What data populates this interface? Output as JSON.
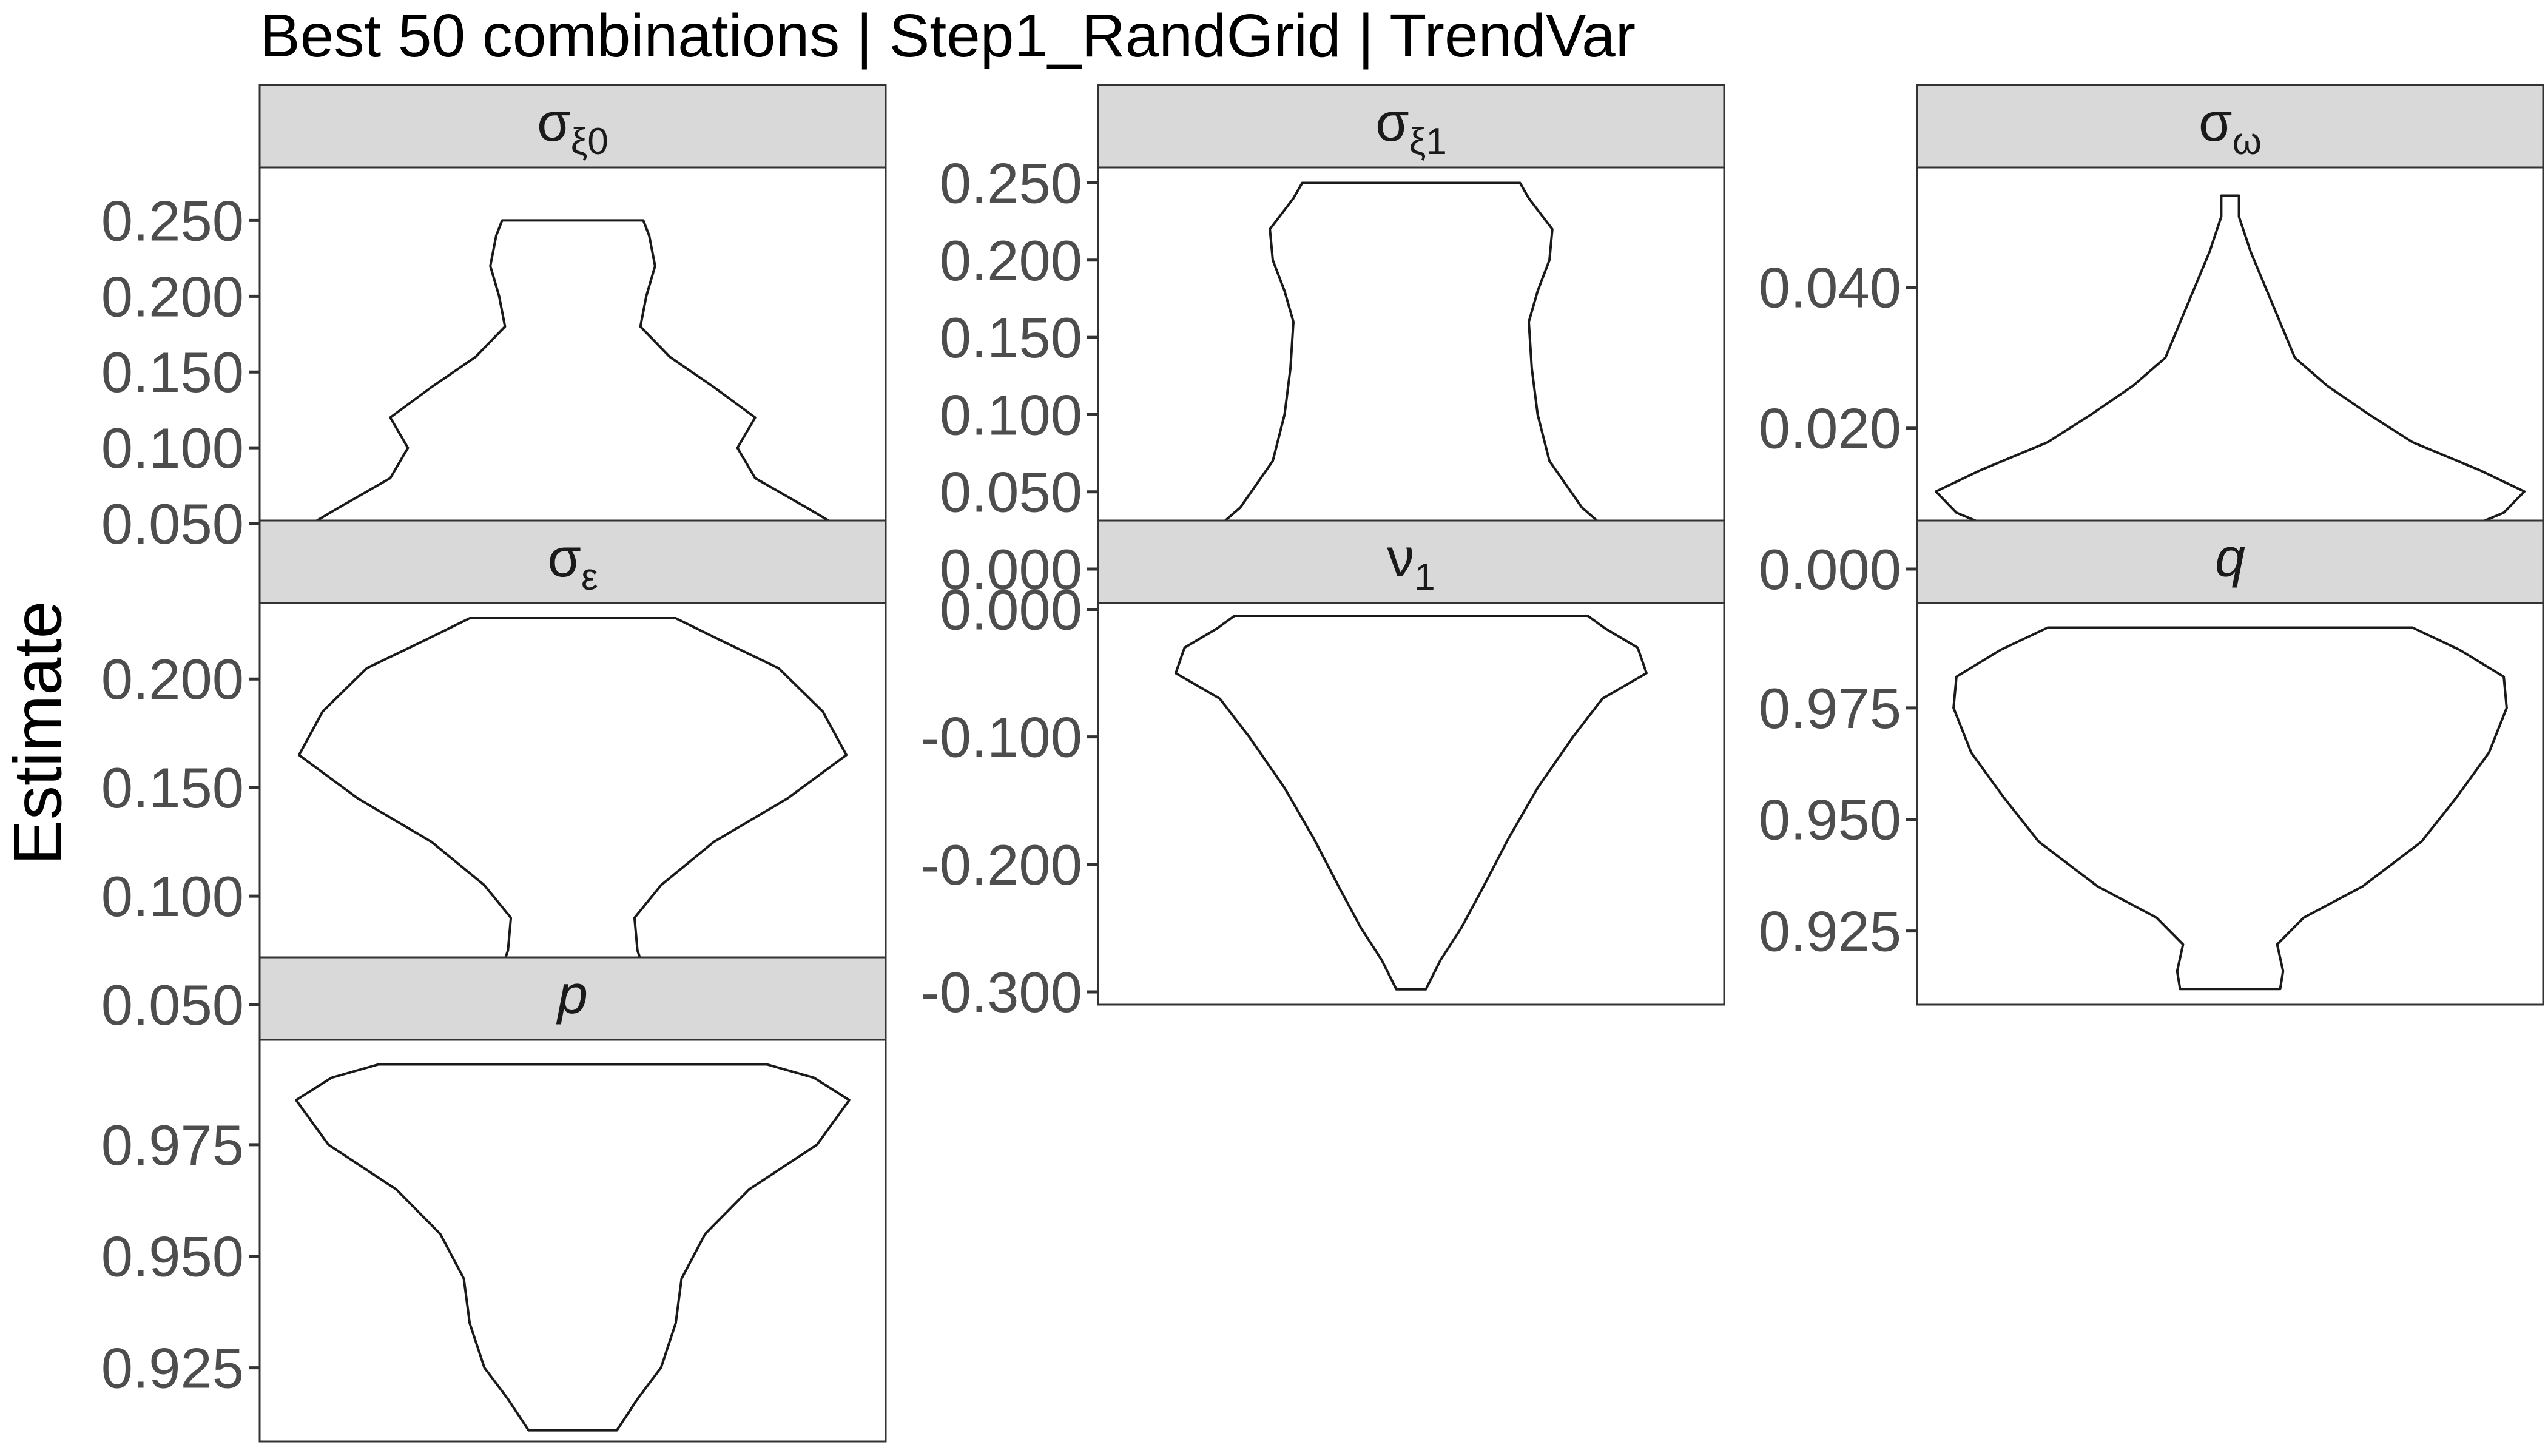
{
  "title": "Best 50 combinations | Step1_RandGrid | TrendVar",
  "ylabel": "Estimate",
  "chart_data": {
    "type": "violin",
    "title": "Best 50 combinations | Step1_RandGrid | TrendVar",
    "ylabel": "Estimate",
    "xlabel": "",
    "grid": false,
    "scales": "free_y",
    "facets": [
      {
        "label": "σ_ξ0",
        "base": "σ",
        "sub": "ξ0",
        "italic": false,
        "ylim": [
          0.02,
          0.285
        ],
        "ticks": [
          0.05,
          0.1,
          0.15,
          0.2,
          0.25
        ],
        "tick_labels": [
          "0.050",
          "0.100",
          "0.150",
          "0.200",
          "0.250"
        ],
        "range": [
          0.035,
          0.25
        ],
        "density": [
          [
            0.035,
            1.0
          ],
          [
            0.045,
            0.93
          ],
          [
            0.06,
            0.8
          ],
          [
            0.08,
            0.62
          ],
          [
            0.1,
            0.56
          ],
          [
            0.12,
            0.62
          ],
          [
            0.14,
            0.48
          ],
          [
            0.16,
            0.33
          ],
          [
            0.18,
            0.23
          ],
          [
            0.2,
            0.25
          ],
          [
            0.22,
            0.28
          ],
          [
            0.24,
            0.26
          ],
          [
            0.25,
            0.24
          ]
        ]
      },
      {
        "label": "σ_ξ1",
        "base": "σ",
        "sub": "ξ1",
        "italic": false,
        "ylim": [
          0.0,
          0.26
        ],
        "ticks": [
          0.0,
          0.05,
          0.1,
          0.15,
          0.2,
          0.25
        ],
        "tick_labels": [
          "0.000",
          "0.050",
          "0.100",
          "0.150",
          "0.200",
          "0.250"
        ],
        "range": [
          0.01,
          0.25
        ],
        "density": [
          [
            0.01,
            0.74
          ],
          [
            0.02,
            0.7
          ],
          [
            0.04,
            0.58
          ],
          [
            0.07,
            0.47
          ],
          [
            0.1,
            0.43
          ],
          [
            0.13,
            0.41
          ],
          [
            0.16,
            0.4
          ],
          [
            0.18,
            0.43
          ],
          [
            0.2,
            0.47
          ],
          [
            0.22,
            0.48
          ],
          [
            0.24,
            0.4
          ],
          [
            0.25,
            0.37
          ]
        ]
      },
      {
        "label": "σ_ω",
        "base": "σ",
        "sub": "ω",
        "italic": false,
        "ylim": [
          0.0,
          0.057
        ],
        "ticks": [
          0.0,
          0.02,
          0.04
        ],
        "tick_labels": [
          "0.000",
          "0.020",
          "0.040"
        ],
        "range": [
          0.001,
          0.053
        ],
        "density": [
          [
            0.001,
            0.38
          ],
          [
            0.004,
            0.7
          ],
          [
            0.008,
            0.93
          ],
          [
            0.011,
            1.0
          ],
          [
            0.014,
            0.85
          ],
          [
            0.018,
            0.62
          ],
          [
            0.022,
            0.47
          ],
          [
            0.026,
            0.33
          ],
          [
            0.03,
            0.22
          ],
          [
            0.035,
            0.17
          ],
          [
            0.04,
            0.12
          ],
          [
            0.045,
            0.07
          ],
          [
            0.05,
            0.03
          ],
          [
            0.053,
            0.03
          ]
        ]
      },
      {
        "label": "σ_ε",
        "base": "σ",
        "sub": "ε",
        "italic": false,
        "ylim": [
          0.05,
          0.235
        ],
        "ticks": [
          0.05,
          0.1,
          0.15,
          0.2
        ],
        "tick_labels": [
          "0.050",
          "0.100",
          "0.150",
          "0.200"
        ],
        "range": [
          0.057,
          0.228
        ],
        "density": [
          [
            0.057,
            0.23
          ],
          [
            0.063,
            0.25
          ],
          [
            0.075,
            0.22
          ],
          [
            0.09,
            0.21
          ],
          [
            0.105,
            0.3
          ],
          [
            0.125,
            0.48
          ],
          [
            0.145,
            0.73
          ],
          [
            0.165,
            0.93
          ],
          [
            0.185,
            0.85
          ],
          [
            0.205,
            0.7
          ],
          [
            0.218,
            0.5
          ],
          [
            0.228,
            0.35
          ]
        ]
      },
      {
        "label": "ν_1",
        "base": "ν",
        "sub": "1",
        "italic": false,
        "ylim": [
          -0.31,
          0.005
        ],
        "ticks": [
          -0.3,
          -0.2,
          -0.1,
          0.0
        ],
        "tick_labels": [
          "-0.300",
          "-0.200",
          "-0.100",
          "0.000"
        ],
        "range": [
          -0.298,
          -0.005
        ],
        "density": [
          [
            -0.298,
            0.05
          ],
          [
            -0.275,
            0.1
          ],
          [
            -0.25,
            0.17
          ],
          [
            -0.22,
            0.24
          ],
          [
            -0.18,
            0.33
          ],
          [
            -0.14,
            0.43
          ],
          [
            -0.1,
            0.55
          ],
          [
            -0.07,
            0.65
          ],
          [
            -0.05,
            0.8
          ],
          [
            -0.03,
            0.77
          ],
          [
            -0.015,
            0.66
          ],
          [
            -0.005,
            0.6
          ]
        ]
      },
      {
        "label": "q",
        "base": "q",
        "sub": "",
        "italic": true,
        "ylim": [
          0.9085,
          0.9985
        ],
        "ticks": [
          0.925,
          0.95,
          0.975
        ],
        "tick_labels": [
          "0.925",
          "0.950",
          "0.975"
        ],
        "range": [
          0.912,
          0.993
        ],
        "density": [
          [
            0.912,
            0.17
          ],
          [
            0.916,
            0.18
          ],
          [
            0.922,
            0.16
          ],
          [
            0.928,
            0.25
          ],
          [
            0.935,
            0.45
          ],
          [
            0.945,
            0.65
          ],
          [
            0.955,
            0.77
          ],
          [
            0.965,
            0.88
          ],
          [
            0.975,
            0.94
          ],
          [
            0.982,
            0.93
          ],
          [
            0.988,
            0.78
          ],
          [
            0.993,
            0.62
          ]
        ]
      },
      {
        "label": "p",
        "base": "p",
        "sub": "",
        "italic": true,
        "ylim": [
          0.9085,
          0.9985
        ],
        "ticks": [
          0.925,
          0.95,
          0.975
        ],
        "tick_labels": [
          "0.925",
          "0.950",
          "0.975"
        ],
        "range": [
          0.911,
          0.993
        ],
        "density": [
          [
            0.911,
            0.15
          ],
          [
            0.918,
            0.22
          ],
          [
            0.925,
            0.3
          ],
          [
            0.935,
            0.35
          ],
          [
            0.945,
            0.37
          ],
          [
            0.955,
            0.45
          ],
          [
            0.965,
            0.6
          ],
          [
            0.975,
            0.83
          ],
          [
            0.985,
            0.94
          ],
          [
            0.99,
            0.82
          ],
          [
            0.993,
            0.66
          ]
        ]
      }
    ]
  }
}
